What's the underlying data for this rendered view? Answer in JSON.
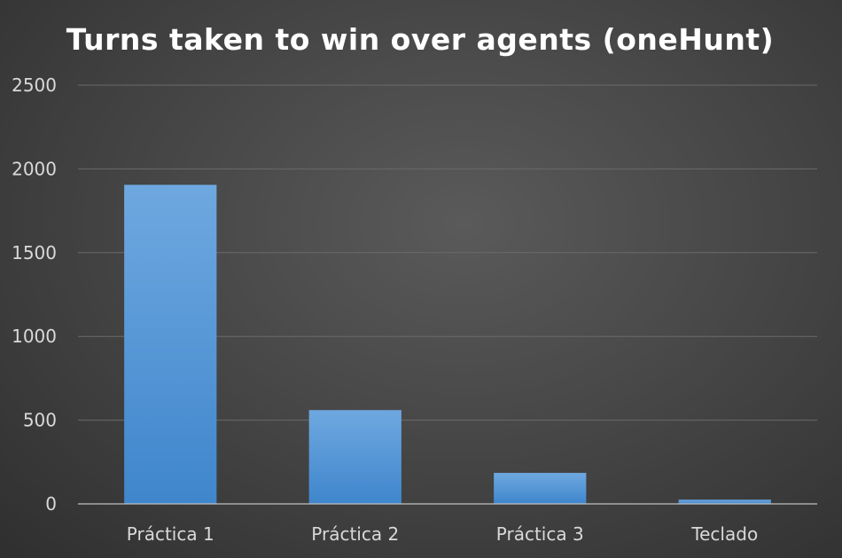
{
  "chart_data": {
    "type": "bar",
    "title": "Turns taken to win over agents (oneHunt)",
    "categories": [
      "Práctica 1",
      "Práctica 2",
      "Práctica 3",
      "Teclado"
    ],
    "values": [
      1905,
      560,
      185,
      25
    ],
    "xlabel": "",
    "ylabel": "",
    "ylim": [
      0,
      2500
    ],
    "yticks": [
      0,
      500,
      1000,
      1500,
      2000,
      2500
    ],
    "grid": true,
    "legend": "none",
    "bar_color": "#5b9bd5"
  }
}
